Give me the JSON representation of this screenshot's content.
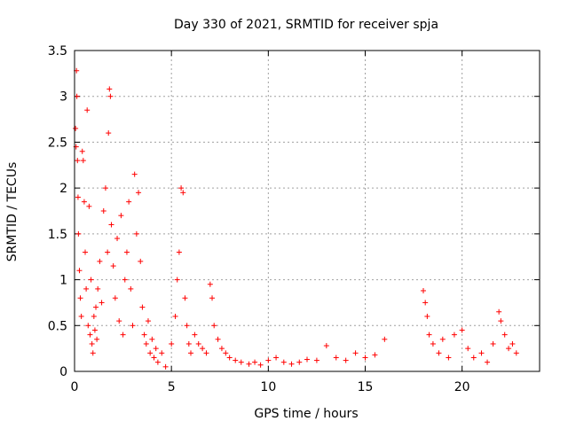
{
  "chart_data": {
    "type": "scatter",
    "title": "Day 330 of 2021, SRMTID for receiver spja",
    "xlabel": "GPS time / hours",
    "ylabel": "SRMTID / TECUs",
    "xlim": [
      0,
      24
    ],
    "ylim": [
      0,
      3.5
    ],
    "x_ticks": [
      0,
      5,
      10,
      15,
      20
    ],
    "x_tick_labels": [
      "0",
      "5",
      "10",
      "15",
      "20"
    ],
    "y_ticks": [
      0,
      0.5,
      1,
      1.5,
      2,
      2.5,
      3,
      3.5
    ],
    "y_tick_labels": [
      "0",
      "0.5",
      "1",
      "1.5",
      "2",
      "2.5",
      "3",
      "3.5"
    ],
    "grid": true,
    "marker": "+",
    "marker_color": "#ff0000",
    "series": [
      {
        "name": "SRMTID",
        "points": [
          [
            0.05,
            2.65
          ],
          [
            0.08,
            2.45
          ],
          [
            0.1,
            3.28
          ],
          [
            0.12,
            3.0
          ],
          [
            0.15,
            2.3
          ],
          [
            0.18,
            1.9
          ],
          [
            0.2,
            1.5
          ],
          [
            0.25,
            1.1
          ],
          [
            0.3,
            0.8
          ],
          [
            0.35,
            0.6
          ],
          [
            0.4,
            2.4
          ],
          [
            0.45,
            2.3
          ],
          [
            0.5,
            1.85
          ],
          [
            0.55,
            1.3
          ],
          [
            0.6,
            0.9
          ],
          [
            0.65,
            2.85
          ],
          [
            0.7,
            0.5
          ],
          [
            0.75,
            1.8
          ],
          [
            0.8,
            0.4
          ],
          [
            0.85,
            1.0
          ],
          [
            0.9,
            0.3
          ],
          [
            0.95,
            0.2
          ],
          [
            1.0,
            0.6
          ],
          [
            1.05,
            0.45
          ],
          [
            1.1,
            0.7
          ],
          [
            1.15,
            0.35
          ],
          [
            1.2,
            0.9
          ],
          [
            1.3,
            1.2
          ],
          [
            1.4,
            0.75
          ],
          [
            1.5,
            1.75
          ],
          [
            1.6,
            2.0
          ],
          [
            1.7,
            1.3
          ],
          [
            1.75,
            2.6
          ],
          [
            1.8,
            3.08
          ],
          [
            1.85,
            3.0
          ],
          [
            1.9,
            1.6
          ],
          [
            2.0,
            1.15
          ],
          [
            2.1,
            0.8
          ],
          [
            2.2,
            1.45
          ],
          [
            2.3,
            0.55
          ],
          [
            2.4,
            1.7
          ],
          [
            2.5,
            0.4
          ],
          [
            2.6,
            1.0
          ],
          [
            2.7,
            1.3
          ],
          [
            2.8,
            1.85
          ],
          [
            2.9,
            0.9
          ],
          [
            3.0,
            0.5
          ],
          [
            3.1,
            2.15
          ],
          [
            3.2,
            1.5
          ],
          [
            3.3,
            1.95
          ],
          [
            3.4,
            1.2
          ],
          [
            3.5,
            0.7
          ],
          [
            3.6,
            0.4
          ],
          [
            3.7,
            0.3
          ],
          [
            3.8,
            0.55
          ],
          [
            3.9,
            0.2
          ],
          [
            4.0,
            0.35
          ],
          [
            4.1,
            0.15
          ],
          [
            4.2,
            0.25
          ],
          [
            4.3,
            0.1
          ],
          [
            4.5,
            0.2
          ],
          [
            4.7,
            0.05
          ],
          [
            5.0,
            0.3
          ],
          [
            5.2,
            0.6
          ],
          [
            5.3,
            1.0
          ],
          [
            5.4,
            1.3
          ],
          [
            5.5,
            2.0
          ],
          [
            5.6,
            1.95
          ],
          [
            5.7,
            0.8
          ],
          [
            5.8,
            0.5
          ],
          [
            5.9,
            0.3
          ],
          [
            6.0,
            0.2
          ],
          [
            6.2,
            0.4
          ],
          [
            6.4,
            0.3
          ],
          [
            6.6,
            0.25
          ],
          [
            6.8,
            0.2
          ],
          [
            7.0,
            0.95
          ],
          [
            7.1,
            0.8
          ],
          [
            7.2,
            0.5
          ],
          [
            7.4,
            0.35
          ],
          [
            7.6,
            0.25
          ],
          [
            7.8,
            0.2
          ],
          [
            8.0,
            0.15
          ],
          [
            8.3,
            0.12
          ],
          [
            8.6,
            0.1
          ],
          [
            9.0,
            0.08
          ],
          [
            9.3,
            0.1
          ],
          [
            9.6,
            0.07
          ],
          [
            10.0,
            0.12
          ],
          [
            10.4,
            0.15
          ],
          [
            10.8,
            0.1
          ],
          [
            11.2,
            0.08
          ],
          [
            11.6,
            0.1
          ],
          [
            12.0,
            0.13
          ],
          [
            12.5,
            0.12
          ],
          [
            13.0,
            0.28
          ],
          [
            13.5,
            0.15
          ],
          [
            14.0,
            0.12
          ],
          [
            14.5,
            0.2
          ],
          [
            15.0,
            0.15
          ],
          [
            15.5,
            0.18
          ],
          [
            16.0,
            0.35
          ],
          [
            18.0,
            0.88
          ],
          [
            18.1,
            0.75
          ],
          [
            18.2,
            0.6
          ],
          [
            18.3,
            0.4
          ],
          [
            18.5,
            0.3
          ],
          [
            18.8,
            0.2
          ],
          [
            19.0,
            0.35
          ],
          [
            19.3,
            0.15
          ],
          [
            19.6,
            0.4
          ],
          [
            20.0,
            0.45
          ],
          [
            20.3,
            0.25
          ],
          [
            20.6,
            0.15
          ],
          [
            21.0,
            0.2
          ],
          [
            21.3,
            0.1
          ],
          [
            21.6,
            0.3
          ],
          [
            21.9,
            0.65
          ],
          [
            22.0,
            0.55
          ],
          [
            22.2,
            0.4
          ],
          [
            22.4,
            0.25
          ],
          [
            22.6,
            0.3
          ],
          [
            22.8,
            0.2
          ]
        ]
      }
    ]
  }
}
